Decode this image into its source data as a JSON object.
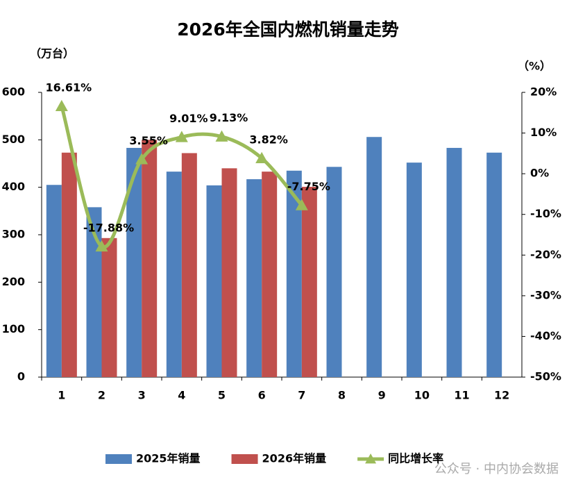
{
  "chart_data": {
    "type": "bar",
    "title": "2026年全国内燃机销量走势",
    "y_label": "（万台）",
    "y2_label": "（%）",
    "watermark": "公众号 · 中内协会数据",
    "categories": [
      "1",
      "2",
      "3",
      "4",
      "5",
      "6",
      "7",
      "8",
      "9",
      "10",
      "11",
      "12"
    ],
    "series": [
      {
        "name": "2025年销量",
        "type": "bar",
        "color": "#4f81bd",
        "values": [
          405,
          358,
          483,
          433,
          404,
          417,
          435,
          443,
          506,
          452,
          483,
          473
        ]
      },
      {
        "name": "2026年销量",
        "type": "bar",
        "color": "#c0504d",
        "values": [
          473,
          293,
          500,
          472,
          440,
          433,
          401,
          null,
          null,
          null,
          null,
          null
        ]
      },
      {
        "name": "同比增长率",
        "type": "line",
        "axis": "y2",
        "color": "#9bbb59",
        "values": [
          16.61,
          -17.88,
          3.55,
          9.01,
          9.13,
          3.82,
          -7.75,
          null,
          null,
          null,
          null,
          null
        ],
        "value_labels": [
          "16.61%",
          "-17.88%",
          "3.55%",
          "9.01%",
          "9.13%",
          "3.82%",
          "-7.75%",
          null,
          null,
          null,
          null,
          null
        ]
      }
    ],
    "ylim": [
      0,
      600
    ],
    "yticks": [
      0,
      100,
      200,
      300,
      400,
      500,
      600
    ],
    "y2lim": [
      -50,
      20
    ],
    "y2ticks": [
      {
        "value": -50,
        "label": "-50%"
      },
      {
        "value": -40,
        "label": "-40%"
      },
      {
        "value": -30,
        "label": "-30%"
      },
      {
        "value": -20,
        "label": "-20%"
      },
      {
        "value": -10,
        "label": "-10%"
      },
      {
        "value": 0,
        "label": "0%"
      },
      {
        "value": 10,
        "label": "10%"
      },
      {
        "value": 20,
        "label": "20%"
      }
    ],
    "grid": false,
    "legend": "bottom"
  }
}
